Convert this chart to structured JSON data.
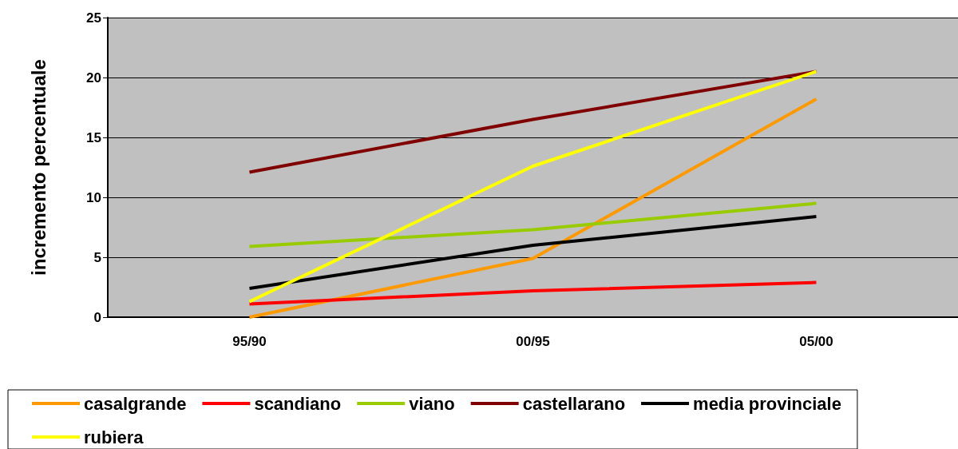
{
  "chart_data": {
    "type": "line",
    "ylabel": "incremento percentuale",
    "categories": [
      "95/90",
      "00/95",
      "05/00"
    ],
    "series": [
      {
        "name": "casalgrande",
        "color": "#ff9900",
        "values": [
          0,
          4.9,
          18.2
        ]
      },
      {
        "name": "scandiano",
        "color": "#ff0000",
        "values": [
          1.1,
          2.2,
          2.9
        ]
      },
      {
        "name": "viano",
        "color": "#99cc00",
        "values": [
          5.9,
          7.3,
          9.5
        ]
      },
      {
        "name": "castellarano",
        "color": "#800000",
        "values": [
          12.1,
          16.5,
          20.5
        ]
      },
      {
        "name": "media provinciale",
        "color": "#000000",
        "values": [
          2.4,
          6.0,
          8.4
        ]
      },
      {
        "name": "rubiera",
        "color": "#ffff00",
        "values": [
          1.3,
          12.6,
          20.5
        ]
      }
    ],
    "ylim": [
      0,
      25
    ],
    "yticks": [
      0,
      5,
      10,
      15,
      20,
      25
    ],
    "grid": "y",
    "legend": "bottom",
    "marker": "none",
    "line_style": "solid"
  }
}
